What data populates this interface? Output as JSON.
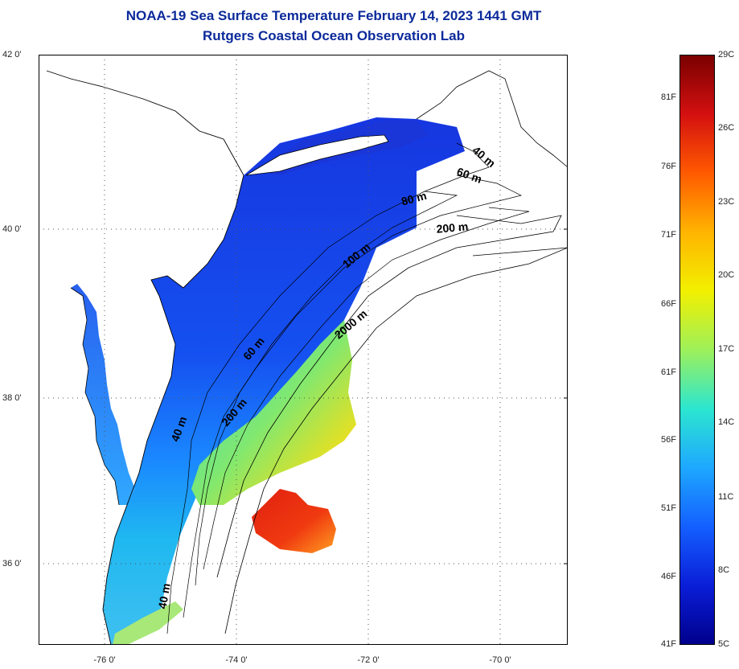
{
  "title": {
    "line1": "NOAA-19 Sea Surface Temperature February 14, 2023 1441 GMT",
    "line2": "Rutgers Coastal Ocean Observation Lab"
  },
  "axes": {
    "lat_ticks": [
      "42 0'",
      "40 0'",
      "38 0'",
      "36 0'"
    ],
    "lon_ticks": [
      "-76 0'",
      "-74 0'",
      "-72 0'",
      "-70 0'"
    ]
  },
  "map_labels": {
    "d40a": "40 m",
    "d60a": "60 m",
    "d80": "80 m",
    "d200a": "200 m",
    "d100": "100 m",
    "d2000": "2000 m",
    "d60b": "60 m",
    "d200b": "200 m",
    "d40b": "40 m",
    "d40c": "40 m"
  },
  "colorbar": {
    "fahrenheit": [
      "81F",
      "76F",
      "71F",
      "66F",
      "61F",
      "56F",
      "51F",
      "46F",
      "41F"
    ],
    "celsius": [
      "29C",
      "26C",
      "23C",
      "20C",
      "17C",
      "14C",
      "11C",
      "8C",
      "5C"
    ],
    "colors": [
      "#7a0000",
      "#d41010",
      "#ff5a00",
      "#ffb400",
      "#f2f000",
      "#9ef05a",
      "#2ce6d0",
      "#1ea8ff",
      "#1460ff",
      "#0a1ed8",
      "#00008c"
    ]
  }
}
